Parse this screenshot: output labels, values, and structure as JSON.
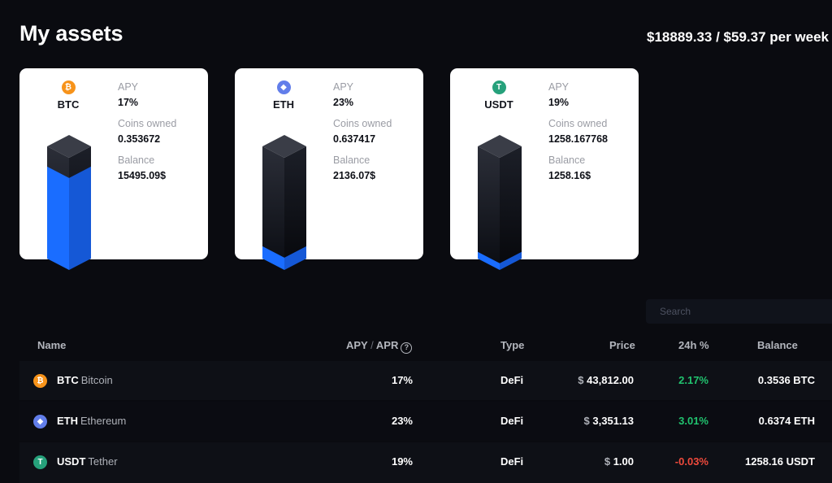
{
  "page": {
    "title": "My assets",
    "total_summary": "$18889.33 / $59.37 per week"
  },
  "cards": [
    {
      "symbol": "BTC",
      "icon": "bitcoin-icon",
      "icon_glyph": "₿",
      "icon_color": "#f7931a",
      "apy_label": "APY",
      "apy": "17%",
      "coins_label": "Coins owned",
      "coins": "0.353672",
      "balance_label": "Balance",
      "balance": "15495.09$",
      "fill_fraction": 0.82
    },
    {
      "symbol": "ETH",
      "icon": "ethereum-icon",
      "icon_glyph": "◆",
      "icon_color": "#627eea",
      "apy_label": "APY",
      "apy": "23%",
      "coins_label": "Coins owned",
      "coins": "0.637417",
      "balance_label": "Balance",
      "balance": "2136.07$",
      "fill_fraction": 0.11
    },
    {
      "symbol": "USDT",
      "icon": "tether-icon",
      "icon_glyph": "T",
      "icon_color": "#26a17b",
      "apy_label": "APY",
      "apy": "19%",
      "coins_label": "Coins owned",
      "coins": "1258.167768",
      "balance_label": "Balance",
      "balance": "1258.16$",
      "fill_fraction": 0.06
    }
  ],
  "search": {
    "placeholder": "Search"
  },
  "table": {
    "headers": {
      "name": "Name",
      "apy": "APY",
      "sep": "/",
      "apr": "APR",
      "type": "Type",
      "price": "Price",
      "change": "24h %",
      "balance": "Balance"
    },
    "rows": [
      {
        "symbol": "BTC",
        "name": "Bitcoin",
        "icon": "bitcoin-icon",
        "icon_glyph": "₿",
        "icon_color": "#f7931a",
        "apy": "17%",
        "type": "DeFi",
        "currency": "$",
        "price": "43,812.00",
        "change": "2.17%",
        "change_dir": "up",
        "balance": "0.3536 BTC"
      },
      {
        "symbol": "ETH",
        "name": "Ethereum",
        "icon": "ethereum-icon",
        "icon_glyph": "◆",
        "icon_color": "#627eea",
        "apy": "23%",
        "type": "DeFi",
        "currency": "$",
        "price": "3,351.13",
        "change": "3.01%",
        "change_dir": "up",
        "balance": "0.6374 ETH"
      },
      {
        "symbol": "USDT",
        "name": "Tether",
        "icon": "tether-icon",
        "icon_glyph": "T",
        "icon_color": "#26a17b",
        "apy": "19%",
        "type": "DeFi",
        "currency": "$",
        "price": "1.00",
        "change": "-0.03%",
        "change_dir": "down",
        "balance": "1258.16 USDT"
      }
    ]
  },
  "colors": {
    "background": "#0a0b10",
    "accent_blue": "#1a6dff",
    "positive": "#21c36f",
    "negative": "#ef4a3c"
  }
}
